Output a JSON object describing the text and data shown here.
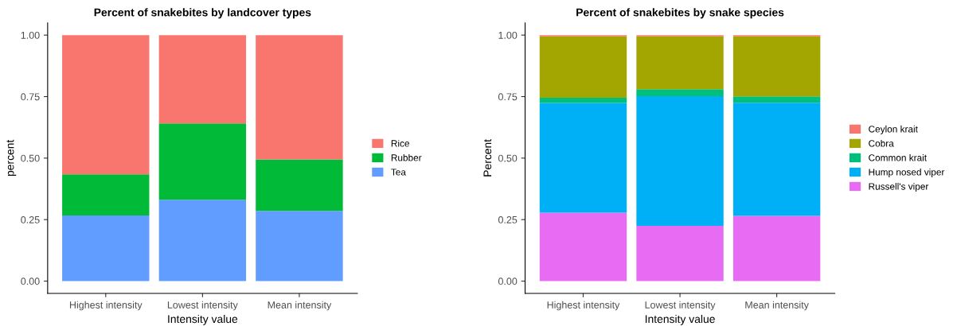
{
  "chart_data": [
    {
      "type": "bar",
      "stacked": true,
      "title": "Percent of snakebites by landcover types",
      "xlabel": "Intensity value",
      "ylabel": "percent",
      "categories": [
        "Highest intensity",
        "Lowest intensity",
        "Mean intensity"
      ],
      "ylim": [
        -0.05,
        1.05
      ],
      "yticks": [
        {
          "value": 0,
          "label": "0.00"
        },
        {
          "value": 0.25,
          "label": "0.25"
        },
        {
          "value": 0.5,
          "label": "0.50"
        },
        {
          "value": 0.75,
          "label": "0.75"
        },
        {
          "value": 1,
          "label": "1.00"
        }
      ],
      "grid": false,
      "legend": "right",
      "series": [
        {
          "name": "Tea",
          "color": "#619cff",
          "values": [
            0.267,
            0.331,
            0.285
          ]
        },
        {
          "name": "Rubber",
          "color": "#00ba38",
          "values": [
            0.167,
            0.31,
            0.21
          ]
        },
        {
          "name": "Rice",
          "color": "#f8766d",
          "values": [
            0.566,
            0.359,
            0.505
          ]
        }
      ]
    },
    {
      "type": "bar",
      "stacked": true,
      "title": "Percent of snakebites by snake species",
      "xlabel": "Intensity value",
      "ylabel": "Percent",
      "categories": [
        "Highest intensity",
        "Lowest intensity",
        "Mean intensity"
      ],
      "ylim": [
        -0.05,
        1.05
      ],
      "yticks": [
        {
          "value": 0,
          "label": "0.00"
        },
        {
          "value": 0.25,
          "label": "0.25"
        },
        {
          "value": 0.5,
          "label": "0.50"
        },
        {
          "value": 0.75,
          "label": "0.75"
        },
        {
          "value": 1,
          "label": "1.00"
        }
      ],
      "grid": false,
      "legend": "right",
      "series": [
        {
          "name": "Russell's viper",
          "color": "#e76bf3",
          "values": [
            0.278,
            0.225,
            0.265
          ]
        },
        {
          "name": "Hump nosed viper",
          "color": "#00b0f6",
          "values": [
            0.446,
            0.527,
            0.46
          ]
        },
        {
          "name": "Common krait",
          "color": "#00bf7d",
          "values": [
            0.021,
            0.028,
            0.026
          ]
        },
        {
          "name": "Cobra",
          "color": "#a3a500",
          "values": [
            0.25,
            0.215,
            0.244
          ]
        },
        {
          "name": "Ceylon krait",
          "color": "#f8766d",
          "values": [
            0.005,
            0.005,
            0.005
          ]
        }
      ]
    }
  ]
}
